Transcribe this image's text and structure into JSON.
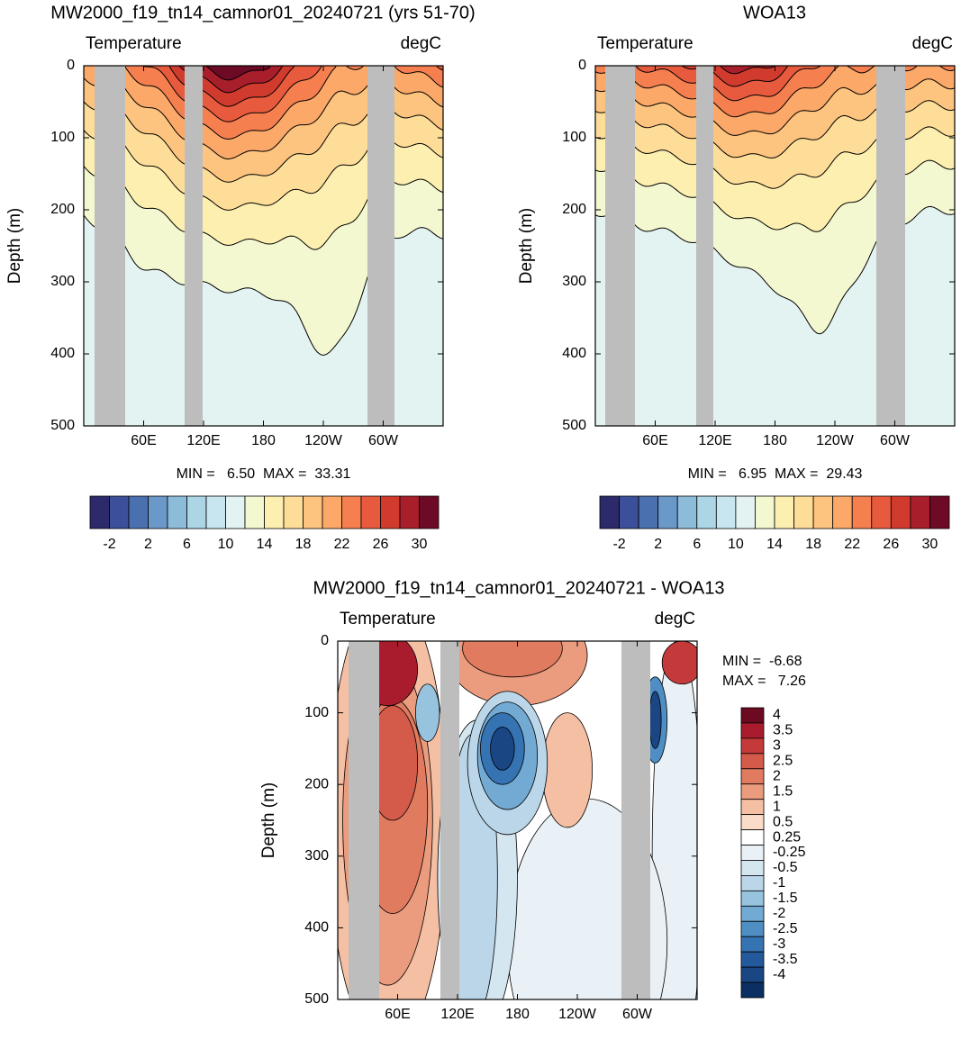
{
  "chart_data": [
    {
      "type": "contour",
      "title": "MW2000_f19_tn14_camnor01_20240721 (yrs 51-70)",
      "left_label": "Temperature",
      "right_label": "degC",
      "ylabel": "Depth (m)",
      "xlim": [
        0,
        360
      ],
      "xticks": [
        {
          "value": 60,
          "label": "60E"
        },
        {
          "value": 120,
          "label": "120E"
        },
        180,
        {
          "value": 240,
          "label": "120W"
        },
        {
          "value": 300,
          "label": "60W"
        }
      ],
      "ylim": [
        0,
        500
      ],
      "yticks": [
        0,
        100,
        200,
        300,
        400,
        500
      ],
      "invert_y": true,
      "stats": "MIN =   6.50  MAX =  33.31",
      "colorbar": {
        "orientation": "horizontal",
        "ticks": [
          -2,
          2,
          6,
          10,
          14,
          18,
          22,
          26,
          30
        ],
        "colors": [
          "#2c2a6b",
          "#3c4f9a",
          "#4a70b0",
          "#6a98c8",
          "#8dbcda",
          "#acd5e6",
          "#c8e6ef",
          "#e3f3f1",
          "#f4f8d0",
          "#fdefb0",
          "#fedd98",
          "#fdc47f",
          "#fba868",
          "#f57f4f",
          "#e85a3e",
          "#d13b2e",
          "#a81e2a",
          "#6d0a26"
        ]
      }
    },
    {
      "type": "contour",
      "title": "WOA13",
      "left_label": "Temperature",
      "right_label": "degC",
      "ylabel": "Depth (m)",
      "xlim": [
        0,
        360
      ],
      "xticks": [
        {
          "value": 60,
          "label": "60E"
        },
        {
          "value": 120,
          "label": "120E"
        },
        180,
        {
          "value": 240,
          "label": "120W"
        },
        {
          "value": 300,
          "label": "60W"
        }
      ],
      "ylim": [
        0,
        500
      ],
      "yticks": [
        0,
        100,
        200,
        300,
        400,
        500
      ],
      "invert_y": true,
      "stats": "MIN =   6.95  MAX =  29.43",
      "colorbar": {
        "orientation": "horizontal",
        "ticks": [
          -2,
          2,
          6,
          10,
          14,
          18,
          22,
          26,
          30
        ],
        "colors": [
          "#2c2a6b",
          "#3c4f9a",
          "#4a70b0",
          "#6a98c8",
          "#8dbcda",
          "#acd5e6",
          "#c8e6ef",
          "#e3f3f1",
          "#f4f8d0",
          "#fdefb0",
          "#fedd98",
          "#fdc47f",
          "#fba868",
          "#f57f4f",
          "#e85a3e",
          "#d13b2e",
          "#a81e2a",
          "#6d0a26"
        ]
      }
    },
    {
      "type": "contour-diff",
      "title": "MW2000_f19_tn14_camnor01_20240721 - WOA13",
      "left_label": "Temperature",
      "right_label": "degC",
      "ylabel": "Depth (m)",
      "xlim": [
        0,
        360
      ],
      "xticks": [
        {
          "value": 60,
          "label": "60E"
        },
        {
          "value": 120,
          "label": "120E"
        },
        180,
        {
          "value": 240,
          "label": "120W"
        },
        {
          "value": 300,
          "label": "60W"
        }
      ],
      "ylim": [
        0,
        500
      ],
      "yticks": [
        0,
        100,
        200,
        300,
        400,
        500
      ],
      "invert_y": true,
      "min_text": "MIN =  -6.68",
      "max_text": "MAX =   7.26",
      "colorbar": {
        "orientation": "vertical",
        "ticks": [
          4,
          3.5,
          3,
          2.5,
          2,
          1.5,
          1,
          0.5,
          0.25,
          -0.25,
          -0.5,
          -1,
          -1.5,
          -2,
          -2.5,
          -3,
          -3.5,
          -4
        ],
        "colors": [
          "#6b0a20",
          "#a81c2d",
          "#c43a3a",
          "#d45a4a",
          "#e07b5f",
          "#eb9c7e",
          "#f5bfa3",
          "#fbdcc8",
          "#ffffff",
          "#e9f1f6",
          "#d4e6f0",
          "#bad6e8",
          "#97c3df",
          "#72aad3",
          "#4f8ec3",
          "#3673b3",
          "#245a9c",
          "#1a4683",
          "#0b2f62"
        ]
      }
    }
  ]
}
